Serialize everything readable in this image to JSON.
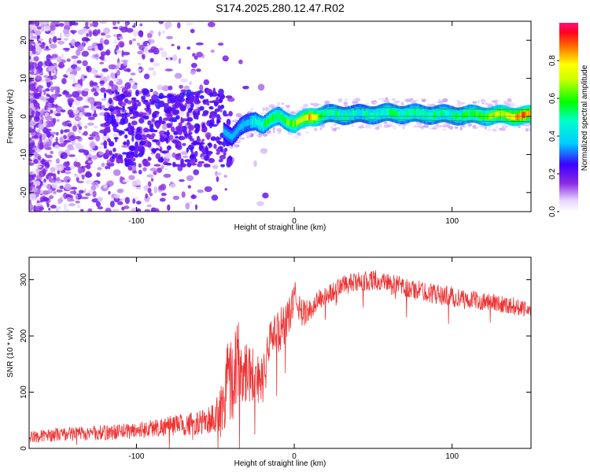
{
  "title": "S174.2025.280.12.47.R02",
  "chart_data": [
    {
      "type": "heatmap",
      "name": "spectrogram",
      "xlabel": "Height of straight line (km)",
      "ylabel": "Frequency (Hz)",
      "xlim": [
        -168,
        150
      ],
      "ylim": [
        -25,
        25
      ],
      "xticks": [
        -100,
        0,
        100
      ],
      "xtick_labels": [
        "-100",
        "0",
        "100"
      ],
      "yticks": [
        -20,
        -10,
        0,
        10,
        20
      ],
      "ytick_labels": [
        "-20",
        "-10",
        "0",
        "10",
        "20"
      ],
      "colorbar": {
        "label": "Normalized spectral amplitude",
        "range": [
          0,
          1
        ],
        "ticks": [
          0.0,
          0.2,
          0.4,
          0.6,
          0.8
        ],
        "tick_labels": [
          "0.0",
          "0.2",
          "0.4",
          "0.6",
          "0.8"
        ],
        "colormap": "rainbow (white-purple-blue-cyan-green-yellow-red-magenta)"
      },
      "signal_trace": {
        "description": "Coherent tone near 0 Hz from ~-45 km to 150 km; diffuse noise below ~-50 km",
        "x": [
          -45,
          -40,
          -35,
          -30,
          -25,
          -20,
          -15,
          -10,
          -5,
          0,
          5,
          10,
          20,
          40,
          60,
          80,
          100,
          120,
          150
        ],
        "freq": [
          -4,
          -5,
          -3,
          -2,
          -1,
          -2,
          -1,
          0,
          -1,
          -2,
          -1,
          0,
          0.5,
          0.5,
          0.8,
          0.6,
          0.4,
          0.3,
          0.2
        ],
        "amplitude": [
          0.25,
          0.2,
          0.3,
          0.35,
          0.45,
          0.5,
          0.6,
          0.55,
          0.6,
          0.65,
          0.7,
          0.85,
          0.5,
          0.45,
          0.5,
          0.5,
          0.5,
          0.6,
          0.9
        ]
      }
    },
    {
      "type": "line",
      "name": "snr",
      "xlabel": "Height of straight line (km)",
      "ylabel": "SNR (10 * v/v)",
      "xlim": [
        -168,
        150
      ],
      "ylim": [
        0,
        340
      ],
      "xticks": [
        -100,
        0,
        100
      ],
      "xtick_labels": [
        "-100",
        "0",
        "100"
      ],
      "yticks": [
        0,
        100,
        200,
        300
      ],
      "ytick_labels": [
        "0",
        "100",
        "200",
        "300"
      ],
      "color": "#ee3333",
      "series": [
        {
          "name": "SNR",
          "x": [
            -168,
            -150,
            -120,
            -100,
            -80,
            -60,
            -50,
            -45,
            -42,
            -40,
            -35,
            -30,
            -25,
            -20,
            -15,
            -10,
            -5,
            0,
            5,
            10,
            15,
            20,
            30,
            40,
            50,
            60,
            70,
            80,
            90,
            100,
            110,
            120,
            130,
            140,
            150
          ],
          "values": [
            20,
            25,
            28,
            32,
            40,
            45,
            55,
            75,
            150,
            120,
            160,
            140,
            130,
            120,
            200,
            210,
            220,
            270,
            240,
            245,
            265,
            270,
            290,
            295,
            300,
            295,
            285,
            280,
            275,
            270,
            265,
            262,
            258,
            252,
            250
          ],
          "noise_amplitude": [
            10,
            12,
            14,
            15,
            18,
            22,
            30,
            60,
            90,
            80,
            70,
            60,
            50,
            40,
            30,
            40,
            35,
            30,
            25,
            20,
            18,
            18,
            18,
            18,
            18,
            18,
            18,
            18,
            18,
            18,
            16,
            16,
            16,
            16,
            16
          ]
        }
      ]
    }
  ]
}
